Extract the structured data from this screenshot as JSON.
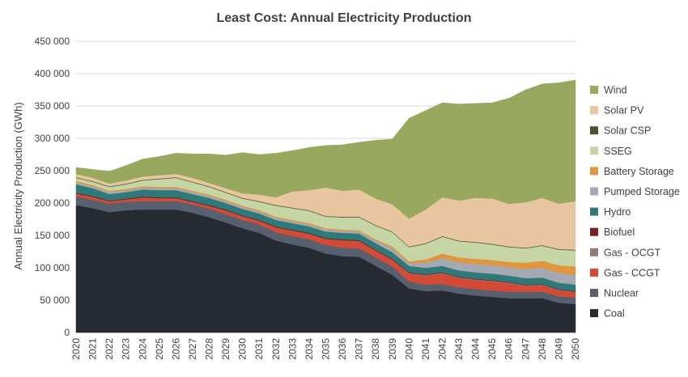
{
  "chart_data": {
    "type": "area",
    "stacked": true,
    "title": "Least Cost: Annual Electricity Production",
    "ylabel": "Annual Electricity Production (GWh)",
    "xlabel": "",
    "ylim": [
      0,
      450000
    ],
    "yticks": [
      0,
      50000,
      100000,
      150000,
      200000,
      250000,
      300000,
      350000,
      400000,
      450000
    ],
    "ytick_labels": [
      "0",
      "50 000",
      "100 000",
      "150 000",
      "200 000",
      "250 000",
      "300 000",
      "350 000",
      "400 000",
      "450 000"
    ],
    "grid": true,
    "legend_position": "right",
    "x": [
      2020,
      2021,
      2022,
      2023,
      2024,
      2025,
      2026,
      2027,
      2028,
      2029,
      2030,
      2031,
      2032,
      2033,
      2034,
      2035,
      2036,
      2037,
      2038,
      2039,
      2040,
      2041,
      2042,
      2043,
      2044,
      2045,
      2046,
      2047,
      2048,
      2049,
      2050
    ],
    "series": [
      {
        "name": "Coal",
        "color": "#262A33",
        "values": [
          197000,
          192000,
          186000,
          189000,
          190000,
          190000,
          190000,
          185000,
          178000,
          170000,
          161000,
          154000,
          142000,
          136000,
          131000,
          122000,
          118000,
          117000,
          103000,
          89000,
          68000,
          64000,
          65000,
          60000,
          57000,
          55000,
          53000,
          53000,
          53000,
          46000,
          44000
        ]
      },
      {
        "name": "Nuclear",
        "color": "#56606E",
        "values": [
          13000,
          13000,
          13000,
          13000,
          13000,
          13000,
          13000,
          13000,
          13000,
          13000,
          13000,
          13000,
          13000,
          13000,
          13000,
          13000,
          13000,
          13000,
          13000,
          13000,
          11000,
          10000,
          10000,
          10000,
          10000,
          10000,
          10000,
          10000,
          10000,
          10000,
          10000
        ]
      },
      {
        "name": "Gas - CCGT",
        "color": "#D34A37",
        "values": [
          4000,
          4000,
          3000,
          3000,
          5000,
          4000,
          4000,
          3000,
          4000,
          5000,
          5000,
          5000,
          7000,
          8000,
          8000,
          9000,
          11000,
          11000,
          10000,
          10000,
          12000,
          14000,
          16000,
          14000,
          14000,
          14000,
          13000,
          9000,
          10000,
          9000,
          8000
        ]
      },
      {
        "name": "Gas - OCGT",
        "color": "#907D74",
        "values": [
          500,
          500,
          500,
          500,
          500,
          500,
          500,
          500,
          500,
          500,
          500,
          500,
          500,
          500,
          500,
          500,
          500,
          500,
          500,
          500,
          800,
          1000,
          1000,
          1000,
          1000,
          1000,
          1000,
          1000,
          1000,
          1000,
          1000
        ]
      },
      {
        "name": "Biofuel",
        "color": "#7A2020",
        "values": [
          1500,
          1500,
          1500,
          1500,
          1500,
          1500,
          1500,
          1500,
          1500,
          1500,
          1500,
          1500,
          1500,
          1500,
          1500,
          1500,
          1500,
          1500,
          1500,
          1500,
          1200,
          1000,
          1000,
          1000,
          1000,
          1000,
          1000,
          1000,
          1000,
          1000,
          1000
        ]
      },
      {
        "name": "Hydro",
        "color": "#2F7A78",
        "values": [
          13000,
          12000,
          10000,
          10000,
          11000,
          11000,
          11000,
          11000,
          11000,
          10000,
          10000,
          10000,
          10000,
          10000,
          10000,
          10000,
          10000,
          10000,
          10000,
          10000,
          10000,
          10000,
          10000,
          10000,
          10000,
          10000,
          10000,
          10000,
          10000,
          10000,
          10000
        ]
      },
      {
        "name": "Pumped Storage",
        "color": "#A4AAB4",
        "values": [
          3000,
          3000,
          3000,
          3000,
          3000,
          3000,
          3000,
          3000,
          3000,
          3000,
          3000,
          3000,
          3000,
          3000,
          3000,
          3000,
          3000,
          3000,
          4000,
          6000,
          4000,
          8000,
          12000,
          12000,
          13000,
          13000,
          13000,
          14000,
          15000,
          15000,
          15000
        ]
      },
      {
        "name": "Battery Storage",
        "color": "#E0963E",
        "values": [
          2000,
          2000,
          2000,
          2000,
          2000,
          2000,
          2000,
          2000,
          2000,
          2000,
          2000,
          2000,
          2000,
          2000,
          2000,
          2000,
          2000,
          2000,
          2000,
          3000,
          3000,
          5000,
          7000,
          8000,
          8000,
          8000,
          8000,
          10000,
          11000,
          12000,
          13000
        ]
      },
      {
        "name": "SSEG",
        "color": "#C6D5A4",
        "values": [
          5000,
          5000,
          6000,
          7000,
          9000,
          12000,
          14000,
          13000,
          12000,
          11000,
          11000,
          13000,
          17000,
          18000,
          19000,
          18000,
          19000,
          20000,
          21000,
          22000,
          22000,
          24000,
          26000,
          25000,
          25000,
          24000,
          23000,
          22000,
          23000,
          24000,
          25000
        ]
      },
      {
        "name": "Solar CSP",
        "color": "#4A5530",
        "values": [
          1000,
          1000,
          1000,
          1000,
          1000,
          1000,
          1000,
          1000,
          1000,
          1000,
          1000,
          1000,
          1000,
          1000,
          1000,
          1000,
          1000,
          1000,
          1000,
          1000,
          1000,
          1000,
          1000,
          1000,
          1000,
          1000,
          1000,
          1000,
          1000,
          1000,
          1000
        ]
      },
      {
        "name": "Solar PV",
        "color": "#E8C6A0",
        "values": [
          5000,
          5000,
          4000,
          5000,
          5000,
          5000,
          5000,
          6000,
          5000,
          6000,
          7000,
          10000,
          12000,
          25000,
          31000,
          44000,
          40000,
          42000,
          41000,
          42000,
          43000,
          52000,
          60000,
          62000,
          68000,
          70000,
          66000,
          70000,
          73000,
          70000,
          75000
        ]
      },
      {
        "name": "Wind",
        "color": "#98A95F",
        "values": [
          10000,
          13000,
          19000,
          23000,
          27000,
          29000,
          32000,
          37000,
          45000,
          51000,
          63000,
          62000,
          68000,
          63000,
          66000,
          65000,
          71000,
          73000,
          90000,
          101000,
          155000,
          153000,
          146000,
          149000,
          146000,
          148000,
          163000,
          174000,
          176000,
          187000,
          187000
        ]
      }
    ]
  }
}
